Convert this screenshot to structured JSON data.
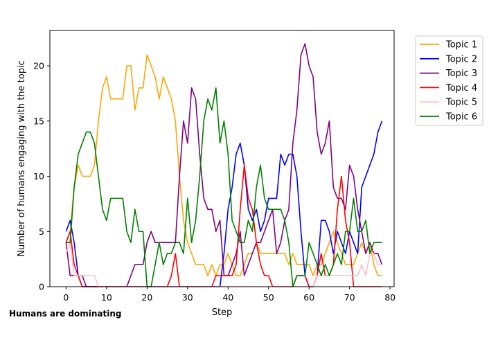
{
  "caption": "Humans are dominating",
  "chart_data": {
    "type": "line",
    "title": "",
    "xlabel": "Step",
    "ylabel": "Number of humans engaging with the topic",
    "xlim": [
      -4,
      81
    ],
    "ylim": [
      0,
      23.2
    ],
    "xticks": [
      0,
      10,
      20,
      30,
      40,
      50,
      60,
      70,
      80
    ],
    "yticks": [
      0,
      5,
      10,
      15,
      20
    ],
    "grid": false,
    "legend_position": "outside upper right",
    "series": [
      {
        "name": "Topic 1",
        "color": "#ffa500",
        "values": [
          4,
          5,
          9,
          11,
          10,
          10,
          10,
          11,
          15,
          18,
          19,
          17,
          17,
          17,
          17,
          20,
          20,
          16,
          18,
          18,
          21,
          20,
          19,
          17,
          19,
          18,
          17,
          15,
          10,
          6,
          4,
          3,
          2,
          2,
          2,
          1,
          2,
          1,
          2,
          2,
          3,
          2,
          1,
          1,
          2,
          3,
          3,
          4,
          3,
          3,
          3,
          3,
          3,
          3,
          3,
          2,
          3,
          2,
          2,
          2,
          2,
          1,
          2,
          2,
          3,
          4,
          5,
          4,
          3,
          2,
          2,
          2,
          3,
          4,
          3,
          4,
          2,
          1,
          1
        ]
      },
      {
        "name": "Topic 2",
        "color": "#0000ff",
        "values": [
          5,
          6,
          4,
          1,
          0,
          0,
          0,
          0,
          0,
          0,
          0,
          0,
          0,
          0,
          0,
          0,
          0,
          0,
          0,
          0,
          0,
          0,
          0,
          0,
          0,
          0,
          0,
          0,
          0,
          0,
          0,
          0,
          0,
          0,
          0,
          0,
          0,
          0,
          0,
          3,
          7,
          9,
          12,
          13,
          11,
          7,
          6,
          7,
          5,
          6,
          8,
          8,
          8,
          12,
          11,
          12,
          12,
          10,
          5,
          1,
          0,
          0,
          1,
          6,
          6,
          5,
          3,
          5,
          4,
          3,
          5,
          4,
          3,
          9,
          10,
          11,
          12,
          14,
          15
        ]
      },
      {
        "name": "Topic 3",
        "color": "#800080",
        "values": [
          4,
          1,
          1,
          1,
          1,
          0,
          0,
          0,
          0,
          0,
          0,
          0,
          0,
          0,
          0,
          0,
          1,
          2,
          2,
          2,
          4,
          5,
          4,
          4,
          4,
          4,
          4,
          4,
          10,
          15,
          13,
          18,
          17,
          12,
          8,
          7,
          7,
          5,
          6,
          1,
          1,
          2,
          3,
          5,
          1,
          2,
          3,
          4,
          4,
          5,
          6,
          7,
          3,
          4,
          6,
          7,
          13,
          16,
          21,
          22,
          20,
          19,
          14,
          12,
          13,
          15,
          9,
          8,
          8,
          7,
          11,
          10,
          7,
          5,
          3,
          4,
          3,
          3,
          2
        ]
      },
      {
        "name": "Topic 4",
        "color": "#ff0000",
        "values": [
          4,
          5,
          2,
          1,
          0,
          0,
          0,
          0,
          0,
          0,
          0,
          0,
          0,
          0,
          0,
          0,
          0,
          0,
          0,
          0,
          0,
          0,
          0,
          0,
          0,
          0,
          1,
          3,
          0,
          0,
          0,
          0,
          0,
          0,
          0,
          0,
          0,
          1,
          1,
          1,
          1,
          1,
          2,
          7,
          11,
          8,
          7,
          4,
          2,
          1,
          1,
          0,
          0,
          0,
          0,
          0,
          0,
          1,
          1,
          1,
          0,
          0,
          1,
          3,
          1,
          1,
          2,
          7,
          10,
          6,
          4,
          0,
          0,
          0,
          0,
          0,
          0,
          0,
          0
        ]
      },
      {
        "name": "Topic 5",
        "color": "#ffc0cb",
        "values": [
          3,
          4,
          1,
          1,
          1,
          1,
          1,
          1,
          0,
          0,
          0,
          0,
          0,
          0,
          0,
          0,
          0,
          0,
          0,
          0,
          0,
          0,
          0,
          0,
          0,
          0,
          0,
          0,
          0,
          0,
          0,
          0,
          0,
          0,
          0,
          0,
          0,
          0,
          0,
          0,
          0,
          0,
          0,
          0,
          0,
          0,
          0,
          0,
          0,
          0,
          0,
          0,
          0,
          0,
          0,
          0,
          0,
          0,
          0,
          0,
          0,
          0,
          1,
          1,
          1,
          1,
          1,
          1,
          1,
          1,
          1,
          1,
          1,
          2,
          1,
          3,
          3,
          2,
          2
        ]
      },
      {
        "name": "Topic 6",
        "color": "#008000",
        "values": [
          4,
          4,
          9,
          12,
          13,
          14,
          14,
          13,
          10,
          7,
          6,
          8,
          8,
          8,
          8,
          5,
          4,
          7,
          5,
          5,
          0,
          0,
          2,
          4,
          2,
          3,
          3,
          4,
          4,
          3,
          8,
          4,
          6,
          10,
          15,
          17,
          16,
          18,
          13,
          15,
          12,
          6,
          5,
          4,
          4,
          6,
          5,
          9,
          11,
          8,
          7,
          7,
          7,
          7,
          6,
          4,
          0,
          1,
          1,
          1,
          4,
          3,
          2,
          1,
          2,
          1,
          2,
          3,
          2,
          5,
          5,
          8,
          5,
          5,
          6,
          3,
          4,
          4,
          4
        ]
      }
    ]
  }
}
